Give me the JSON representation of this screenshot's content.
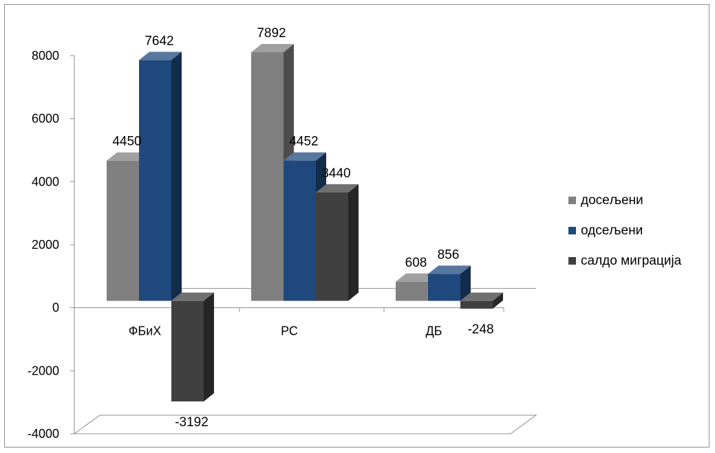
{
  "chart_data": {
    "type": "bar",
    "title": "",
    "xlabel": "",
    "ylabel": "",
    "categories": [
      "ФБиХ",
      "РС",
      "ДБ"
    ],
    "series": [
      {
        "name": "досељени",
        "values": [
          4450,
          7892,
          608
        ],
        "color": "#808080"
      },
      {
        "name": "одсељени",
        "values": [
          7642,
          4452,
          856
        ],
        "color": "#1f497d"
      },
      {
        "name": "салдо миграција",
        "values": [
          -3192,
          3440,
          -248
        ],
        "color": "#404040"
      }
    ],
    "ylim": [
      -4000,
      8000
    ],
    "yticks": [
      "8000",
      "6000",
      "4000",
      "2000",
      "0",
      "-2000",
      "-4000"
    ],
    "data_labels": true,
    "legend": "right",
    "grid": false
  }
}
